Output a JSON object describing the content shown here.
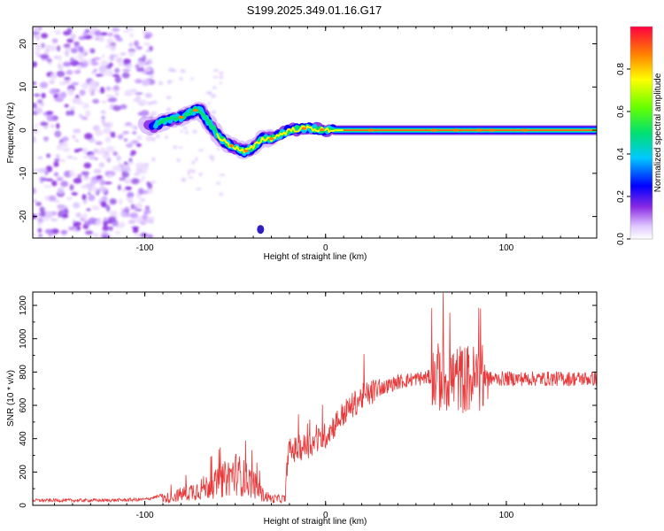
{
  "title": "S199.2025.349.01.16.G17",
  "chart_data": [
    {
      "type": "heatmap",
      "xlabel": "Height of straight line (km)",
      "ylabel": "Frequency (Hz)",
      "xlim": [
        -162,
        150
      ],
      "ylim": [
        -25,
        24
      ],
      "x_ticks": [
        -100,
        0,
        100
      ],
      "y_ticks": [
        -20,
        -10,
        0,
        10,
        20
      ],
      "colorbar": {
        "label": "Normalized spectral amplitude",
        "range": [
          0,
          1
        ],
        "ticks": [
          "0.0",
          "0.2",
          "0.4",
          "0.6",
          "0.8"
        ]
      },
      "ridge": [
        [
          -95,
          1
        ],
        [
          -90,
          2
        ],
        [
          -85,
          2.5
        ],
        [
          -80,
          3
        ],
        [
          -75,
          4
        ],
        [
          -70,
          5
        ],
        [
          -65,
          2
        ],
        [
          -60,
          -1
        ],
        [
          -55,
          -3
        ],
        [
          -50,
          -4
        ],
        [
          -45,
          -5
        ],
        [
          -40,
          -4
        ],
        [
          -35,
          -2
        ],
        [
          -30,
          -2
        ],
        [
          -25,
          -1
        ],
        [
          -20,
          0
        ],
        [
          -10,
          0.5
        ],
        [
          0,
          0
        ],
        [
          10,
          0
        ],
        [
          50,
          0
        ],
        [
          60,
          0
        ],
        [
          70,
          0
        ],
        [
          80,
          0
        ],
        [
          90,
          0
        ],
        [
          100,
          0
        ],
        [
          120,
          0
        ],
        [
          150,
          0
        ]
      ]
    },
    {
      "type": "line",
      "xlabel": "Height of straight line (km)",
      "ylabel": "SNR (10 * v/v)",
      "xlim": [
        -162,
        150
      ],
      "ylim": [
        0,
        1280
      ],
      "x_ticks": [
        -100,
        0,
        100
      ],
      "y_ticks": [
        0,
        200,
        400,
        600,
        800,
        1000,
        1200
      ],
      "color": "#e8393a",
      "envelope": [
        [
          -162,
          30
        ],
        [
          -120,
          30
        ],
        [
          -100,
          35
        ],
        [
          -90,
          60
        ],
        [
          -80,
          100
        ],
        [
          -70,
          150
        ],
        [
          -60,
          200
        ],
        [
          -55,
          250
        ],
        [
          -50,
          300
        ],
        [
          -45,
          250
        ],
        [
          -40,
          200
        ],
        [
          -35,
          100
        ],
        [
          -30,
          60
        ],
        [
          -22,
          60
        ],
        [
          -21,
          320
        ],
        [
          -15,
          340
        ],
        [
          -5,
          380
        ],
        [
          0,
          420
        ],
        [
          10,
          550
        ],
        [
          20,
          650
        ],
        [
          30,
          700
        ],
        [
          40,
          740
        ],
        [
          50,
          760
        ],
        [
          60,
          770
        ],
        [
          70,
          760
        ],
        [
          80,
          760
        ],
        [
          90,
          760
        ],
        [
          100,
          760
        ],
        [
          120,
          760
        ],
        [
          150,
          760
        ]
      ]
    }
  ]
}
